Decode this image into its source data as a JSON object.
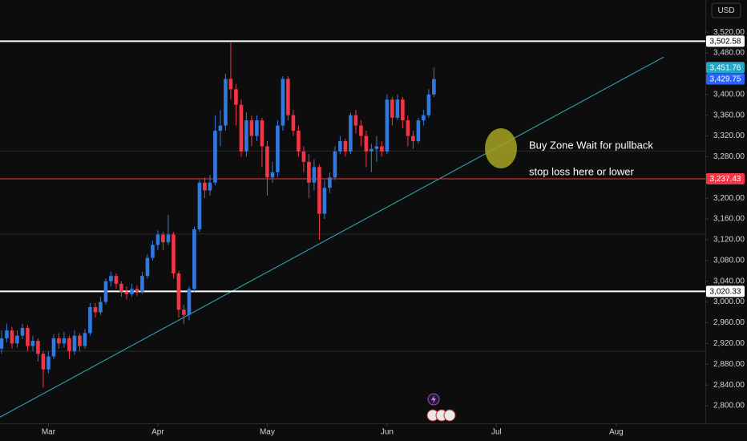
{
  "chart_data": {
    "type": "candlestick",
    "currency": "USD",
    "xlim": [
      -0.3,
      135.1
    ],
    "xticks": [
      {
        "value": 9,
        "label": "Mar"
      },
      {
        "value": 30,
        "label": "Apr"
      },
      {
        "value": 51,
        "label": "May"
      },
      {
        "value": 74,
        "label": "Jun"
      },
      {
        "value": 95,
        "label": "Jul"
      },
      {
        "value": 118,
        "label": "Aug"
      }
    ],
    "ylim": [
      2766,
      3582
    ],
    "yticks": [
      {
        "value": 3520,
        "label": "3,520.00"
      },
      {
        "value": 3480,
        "label": "3,480.00"
      },
      {
        "value": 3400,
        "label": "3,400.00"
      },
      {
        "value": 3360,
        "label": "3,360.00"
      },
      {
        "value": 3320,
        "label": "3,320.00"
      },
      {
        "value": 3280,
        "label": "3,280.00"
      },
      {
        "value": 3200,
        "label": "3,200.00"
      },
      {
        "value": 3160,
        "label": "3,160.00"
      },
      {
        "value": 3120,
        "label": "3,120.00"
      },
      {
        "value": 3080,
        "label": "3,080.00"
      },
      {
        "value": 3040,
        "label": "3,040.00"
      },
      {
        "value": 3000,
        "label": "3,000.00"
      },
      {
        "value": 2960,
        "label": "2,960.00"
      },
      {
        "value": 2920,
        "label": "2,920.00"
      },
      {
        "value": 2880,
        "label": "2,880.00"
      },
      {
        "value": 2840,
        "label": "2,840.00"
      },
      {
        "value": 2800,
        "label": "2,800.00"
      }
    ],
    "grid": false,
    "up_color": "#3179e0",
    "down_color": "#f23645",
    "open": [
      2910,
      2930,
      2945,
      2920,
      2935,
      2950,
      2915,
      2925,
      2900,
      2870,
      2895,
      2930,
      2920,
      2930,
      2905,
      2935,
      2915,
      2940,
      2990,
      2980,
      3000,
      3040,
      3050,
      3035,
      3020,
      3015,
      3025,
      3020,
      3050,
      3085,
      3110,
      3130,
      3115,
      3130,
      3055,
      2985,
      2975,
      3025,
      3140,
      3230,
      3215,
      3230,
      3330,
      3340,
      3430,
      3410,
      3380,
      3290,
      3350,
      3320,
      3350,
      3300,
      3240,
      3250,
      3340,
      3430,
      3360,
      3330,
      3290,
      3270,
      3230,
      3260,
      3170,
      3220,
      3240,
      3290,
      3310,
      3290,
      3360,
      3340,
      3320,
      3290,
      3295,
      3300,
      3290,
      3390,
      3355,
      3390,
      3350,
      3320,
      3310,
      3350,
      3360,
      3400
    ],
    "high": [
      2945,
      2958,
      2952,
      2945,
      2958,
      2955,
      2935,
      2930,
      2905,
      2905,
      2938,
      2940,
      2942,
      2935,
      2945,
      2940,
      2948,
      2998,
      2998,
      3010,
      3045,
      3058,
      3055,
      3040,
      3030,
      3035,
      3032,
      3058,
      3092,
      3118,
      3138,
      3135,
      3168,
      3135,
      3060,
      2995,
      3030,
      3145,
      3235,
      3240,
      3245,
      3360,
      3370,
      3440,
      3500,
      3420,
      3390,
      3365,
      3360,
      3360,
      3355,
      3310,
      3270,
      3350,
      3435,
      3435,
      3370,
      3340,
      3300,
      3285,
      3275,
      3265,
      3235,
      3250,
      3300,
      3320,
      3315,
      3365,
      3370,
      3350,
      3330,
      3305,
      3320,
      3310,
      3400,
      3395,
      3400,
      3395,
      3360,
      3330,
      3355,
      3370,
      3410,
      3451.76
    ],
    "low": [
      2900,
      2922,
      2910,
      2912,
      2928,
      2905,
      2905,
      2885,
      2835,
      2862,
      2890,
      2910,
      2912,
      2890,
      2898,
      2905,
      2910,
      2935,
      2970,
      2975,
      2995,
      3030,
      3025,
      3010,
      3005,
      3010,
      3012,
      3015,
      3045,
      3080,
      3100,
      3100,
      3110,
      3045,
      2970,
      2957,
      2965,
      3020,
      3135,
      3200,
      3205,
      3225,
      3300,
      3330,
      3390,
      3340,
      3280,
      3280,
      3300,
      3310,
      3260,
      3205,
      3230,
      3240,
      3330,
      3350,
      3320,
      3280,
      3250,
      3200,
      3215,
      3120,
      3160,
      3210,
      3235,
      3285,
      3280,
      3285,
      3325,
      3300,
      3260,
      3250,
      3270,
      3280,
      3285,
      3340,
      3350,
      3335,
      3300,
      3295,
      3305,
      3340,
      3355,
      3395
    ],
    "close": [
      2930,
      2945,
      2920,
      2935,
      2950,
      2915,
      2925,
      2900,
      2870,
      2895,
      2930,
      2920,
      2930,
      2905,
      2935,
      2915,
      2940,
      2990,
      2980,
      3000,
      3040,
      3050,
      3035,
      3020,
      3015,
      3025,
      3020,
      3050,
      3085,
      3110,
      3130,
      3115,
      3130,
      3055,
      2985,
      2975,
      3025,
      3140,
      3230,
      3215,
      3230,
      3330,
      3340,
      3430,
      3410,
      3380,
      3290,
      3350,
      3320,
      3350,
      3300,
      3240,
      3250,
      3340,
      3430,
      3360,
      3330,
      3290,
      3270,
      3230,
      3260,
      3170,
      3220,
      3240,
      3290,
      3310,
      3290,
      3360,
      3340,
      3320,
      3290,
      3295,
      3300,
      3290,
      3390,
      3355,
      3390,
      3350,
      3320,
      3310,
      3350,
      3360,
      3400,
      3429.75
    ],
    "levels": [
      {
        "value": 3502.58,
        "label": "3,502.58",
        "color": "#ffffff"
      },
      {
        "value": 3237.43,
        "label": "3,237.43",
        "color": "#f23645"
      },
      {
        "value": 3020.33,
        "label": "3,020.33",
        "color": "#ffffff"
      }
    ],
    "price_tags": [
      {
        "value": 3451.76,
        "label": "3,451.76",
        "color": "#1fa7c4"
      },
      {
        "value": 3429.75,
        "label": "3,429.75",
        "color": "#2962ff"
      }
    ],
    "guide_lines": [
      3291,
      3131,
      2905
    ],
    "trendline": {
      "x": [
        -0.3,
        127.1
      ],
      "y": [
        2778,
        3472
      ],
      "color": "#2bb3c0"
    },
    "annotations": [
      "Buy Zone Wait for pullback",
      "stop loss here or lower"
    ]
  }
}
